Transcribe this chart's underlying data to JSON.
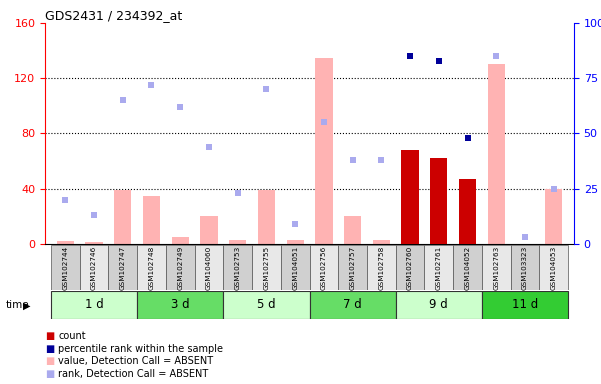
{
  "title": "GDS2431 / 234392_at",
  "samples": [
    "GSM102744",
    "GSM102746",
    "GSM102747",
    "GSM102748",
    "GSM102749",
    "GSM104060",
    "GSM102753",
    "GSM102755",
    "GSM104051",
    "GSM102756",
    "GSM102757",
    "GSM102758",
    "GSM102760",
    "GSM102761",
    "GSM104052",
    "GSM102763",
    "GSM103323",
    "GSM104053"
  ],
  "time_groups": [
    {
      "label": "1 d",
      "start": 0,
      "end": 3,
      "color": "#ccffcc"
    },
    {
      "label": "3 d",
      "start": 3,
      "end": 6,
      "color": "#66dd66"
    },
    {
      "label": "5 d",
      "start": 6,
      "end": 9,
      "color": "#ccffcc"
    },
    {
      "label": "7 d",
      "start": 9,
      "end": 12,
      "color": "#66dd66"
    },
    {
      "label": "9 d",
      "start": 12,
      "end": 15,
      "color": "#ccffcc"
    },
    {
      "label": "11 d",
      "start": 15,
      "end": 18,
      "color": "#33cc33"
    }
  ],
  "count_values": [
    0,
    0,
    0,
    0,
    0,
    0,
    0,
    0,
    0,
    0,
    0,
    0,
    68,
    62,
    47,
    0,
    0,
    0
  ],
  "percentile_values": [
    0,
    0,
    0,
    0,
    0,
    0,
    0,
    0,
    0,
    0,
    0,
    0,
    85,
    83,
    48,
    0,
    0,
    0
  ],
  "value_absent": [
    2,
    1,
    39,
    35,
    5,
    20,
    3,
    39,
    3,
    135,
    20,
    3,
    0,
    0,
    0,
    130,
    0,
    40
  ],
  "rank_absent": [
    20,
    13,
    65,
    72,
    62,
    44,
    23,
    70,
    9,
    55,
    38,
    38,
    0,
    0,
    0,
    85,
    3,
    25
  ],
  "ylim_left": [
    0,
    160
  ],
  "ylim_right": [
    0,
    100
  ],
  "yticks_left": [
    0,
    40,
    80,
    120,
    160
  ],
  "yticks_right": [
    0,
    25,
    50,
    75,
    100
  ],
  "ytick_labels_right": [
    "0",
    "25",
    "50",
    "75",
    "100%"
  ],
  "grid_lines": [
    40,
    80,
    120
  ],
  "count_color": "#cc0000",
  "percentile_color": "#000099",
  "value_absent_color": "#ffb3b3",
  "rank_absent_color": "#aaaaee",
  "bar_width": 0.6
}
